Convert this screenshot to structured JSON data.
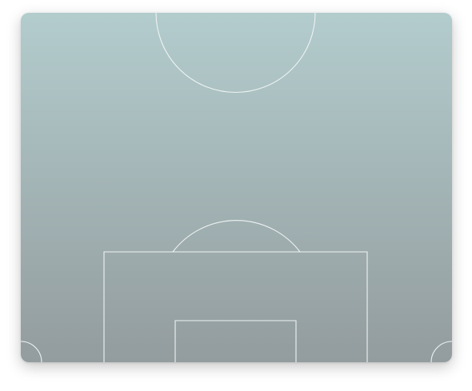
{
  "pitch": {
    "view": "half-pitch",
    "colors": {
      "turf_top": "#b3cccd",
      "turf_bottom": "#939c9e",
      "line": "#eef3f3"
    },
    "markings": [
      "center-circle-arc",
      "penalty-arc",
      "penalty-box",
      "goal-box",
      "corner-arc-left",
      "corner-arc-right"
    ]
  }
}
